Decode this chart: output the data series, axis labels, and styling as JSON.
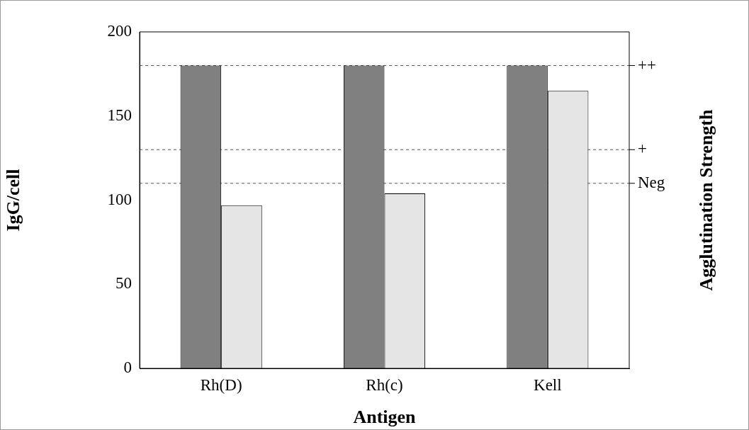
{
  "chart_data": {
    "type": "bar",
    "xlabel": "Antigen",
    "ylabel": "IgG/cell",
    "y2label": "Agglutination Strength",
    "categories": [
      "Rh(D)",
      "Rh(c)",
      "Kell"
    ],
    "series": [
      {
        "color": "#808080",
        "values": [
          180,
          180,
          180
        ]
      },
      {
        "color": "#e5e5e5",
        "values": [
          97,
          104,
          165
        ]
      }
    ],
    "ylim": [
      0,
      200
    ],
    "yticks": [
      0,
      50,
      100,
      150,
      200
    ],
    "ref_lines": [
      {
        "axis": "y",
        "value": 180,
        "label": "++",
        "color": "#555555",
        "line_style": "dashed"
      },
      {
        "axis": "y",
        "value": 130,
        "label": "+",
        "color": "#555555",
        "line_style": "dashed"
      },
      {
        "axis": "y",
        "value": 110,
        "label": "Neg",
        "color": "#555555",
        "line_style": "dashed"
      }
    ]
  }
}
